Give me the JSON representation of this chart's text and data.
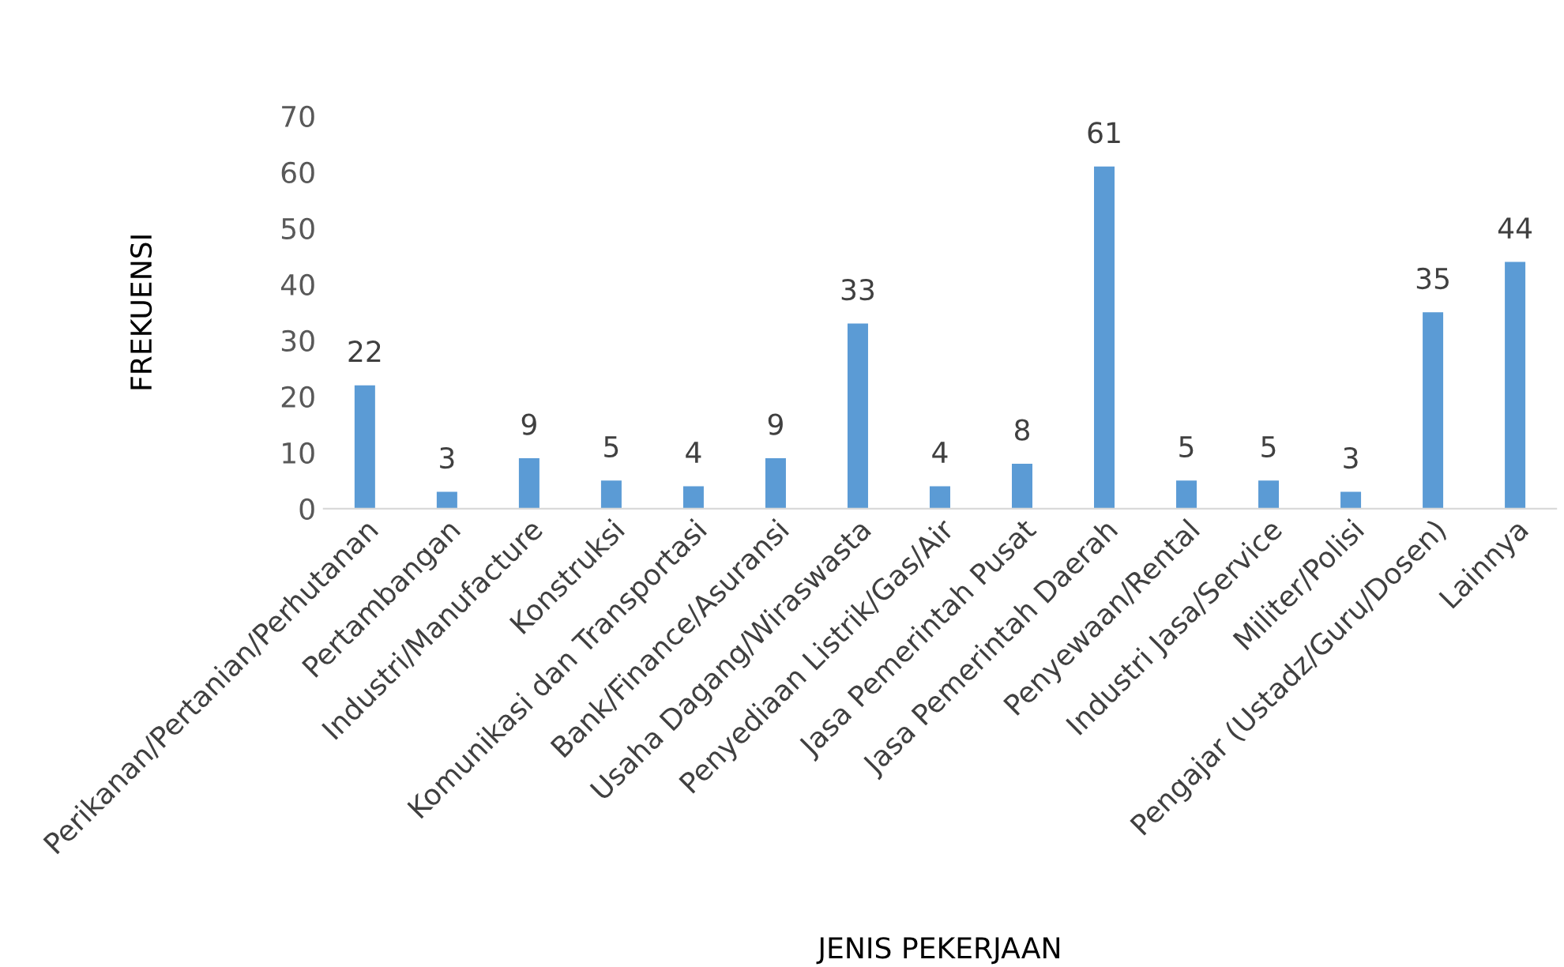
{
  "chart_data": {
    "type": "bar",
    "xlabel": "JENIS PEKERJAAN",
    "ylabel": "FREKUENSI",
    "categories": [
      "Perikanan/Pertanian/Perhutanan",
      "Pertambangan",
      "Industri/Manufacture",
      "Konstruksi",
      "Komunikasi dan Transportasi",
      "Bank/Finance/Asuransi",
      "Usaha Dagang/Wiraswasta",
      "Penyediaan Listrik/Gas/Air",
      "Jasa Pemerintah Pusat",
      "Jasa Pemerintah Daerah",
      "Penyewaan/Rental",
      "Industri Jasa/Service",
      "Militer/Polisi",
      "Pengajar (Ustadz/Guru/Dosen)",
      "Lainnya"
    ],
    "values": [
      22,
      3,
      9,
      5,
      4,
      9,
      33,
      4,
      8,
      61,
      5,
      5,
      3,
      35,
      44
    ],
    "color": "#5b9bd5",
    "ylim": [
      0,
      70
    ],
    "yticks": [
      0,
      10,
      20,
      30,
      40,
      50,
      60,
      70
    ],
    "grid": false,
    "data_labels": true,
    "legend": false
  }
}
